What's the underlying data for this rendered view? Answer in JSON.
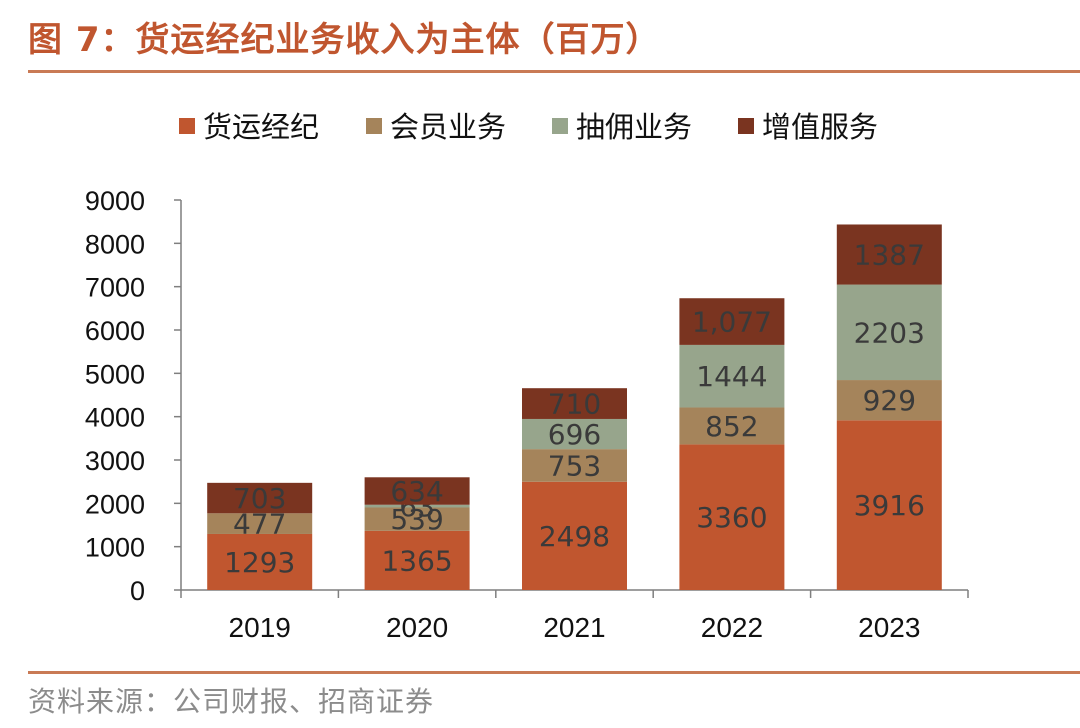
{
  "figure": {
    "title": "图 7：货运经纪业务收入为主体（百万）",
    "source": "资料来源：公司财报、招商证券"
  },
  "colors": {
    "accent": "#c0562f",
    "rule": "#c97a55",
    "source_text": "#8c8c8c",
    "axis": "#7f7f7f",
    "label_text": "#3a3a3a"
  },
  "chart_data": {
    "type": "bar",
    "stacked": true,
    "title": "",
    "xlabel": "",
    "ylabel": "",
    "categories": [
      "2019",
      "2020",
      "2021",
      "2022",
      "2023"
    ],
    "ylim": [
      0,
      9000
    ],
    "yticks": [
      0,
      1000,
      2000,
      3000,
      4000,
      5000,
      6000,
      7000,
      8000,
      9000
    ],
    "grid": false,
    "legend_position": "top",
    "series": [
      {
        "name": "货运经纪",
        "color": "#c0562f",
        "values": [
          1293,
          1365,
          2498,
          3360,
          3916
        ],
        "labels": [
          "1293",
          "1365",
          "2498",
          "3360",
          "3916"
        ]
      },
      {
        "name": "会员业务",
        "color": "#a5845b",
        "values": [
          477,
          539,
          753,
          852,
          929
        ],
        "labels": [
          "477",
          "539",
          "753",
          "852",
          "929"
        ]
      },
      {
        "name": "抽佣业务",
        "color": "#97a58c",
        "values": [
          0,
          63,
          696,
          1444,
          2203
        ],
        "labels": [
          "",
          "63",
          "696",
          "1444",
          "2203"
        ]
      },
      {
        "name": "增值服务",
        "color": "#7a3420",
        "values": [
          703,
          634,
          710,
          1077,
          1387
        ],
        "labels": [
          "703",
          "634",
          "710",
          "1,077",
          "1387"
        ]
      }
    ]
  }
}
